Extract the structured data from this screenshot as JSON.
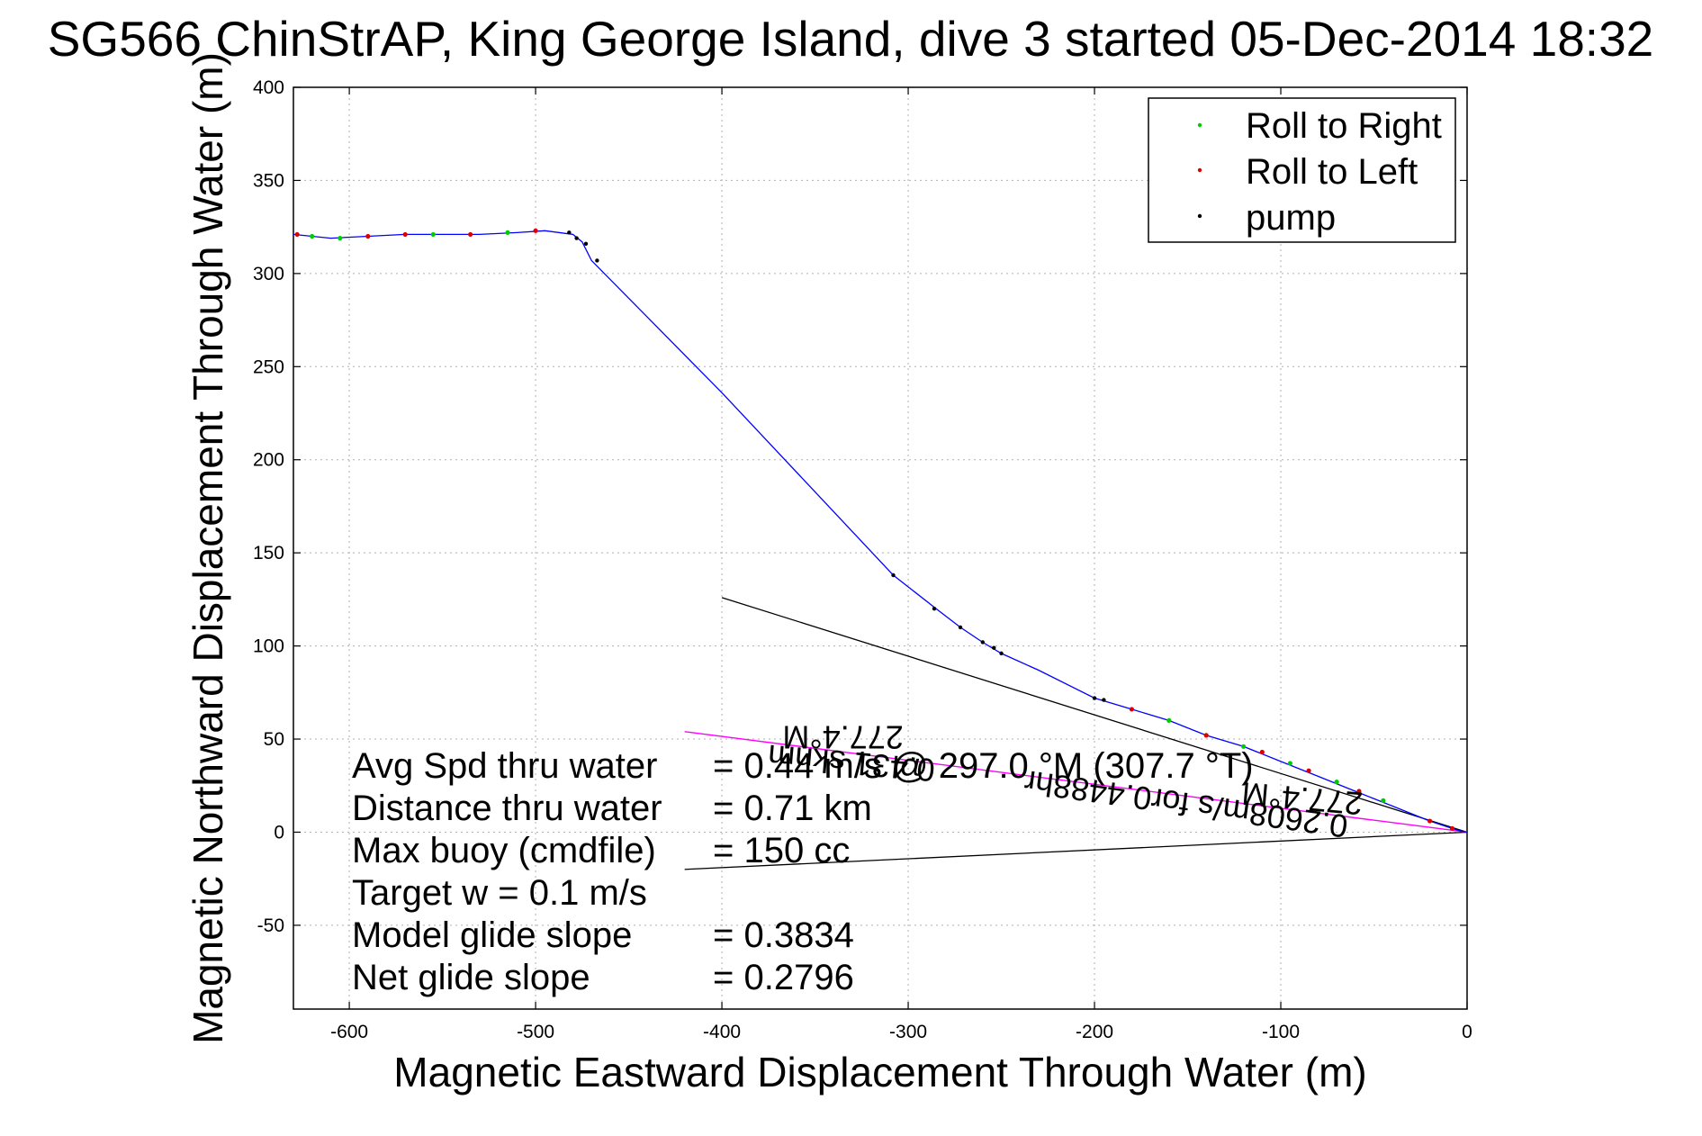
{
  "chart_data": {
    "type": "line",
    "title": "SG566 ChinStrAP, King George Island, dive 3 started 05-Dec-2014 18:32",
    "xlabel": "Magnetic Eastward Displacement Through Water (m)",
    "ylabel": "Magnetic Northward Displacement Through Water (m)",
    "xlim": [
      -630,
      0
    ],
    "ylim": [
      -95,
      400
    ],
    "xticks": [
      -600,
      -500,
      -400,
      -300,
      -200,
      -100,
      0
    ],
    "yticks": [
      -50,
      0,
      50,
      100,
      150,
      200,
      250,
      300,
      350,
      400
    ],
    "grid": true,
    "legend_placement": "top-right",
    "colors": {
      "track": "#0000ff",
      "roll_right": "#00cc00",
      "roll_left": "#dd0000",
      "pump": "#000000",
      "current_line": "#ff00ff",
      "reference_lines": "#000000",
      "grid": "#b0b0b0"
    },
    "legend": [
      {
        "label": "Roll to Right",
        "color": "#00cc00"
      },
      {
        "label": "Roll to Left",
        "color": "#dd0000"
      },
      {
        "label": "pump",
        "color": "#000000"
      }
    ],
    "series": [
      {
        "name": "",
        "color": "#0000ff",
        "points": [
          [
            -630,
            321
          ],
          [
            -610,
            319
          ],
          [
            -590,
            320
          ],
          [
            -570,
            321
          ],
          [
            -550,
            321
          ],
          [
            -530,
            321
          ],
          [
            -510,
            322
          ],
          [
            -495,
            323
          ],
          [
            -480,
            321
          ],
          [
            -475,
            317
          ],
          [
            -470,
            307
          ],
          [
            -400,
            236
          ],
          [
            -308,
            138
          ],
          [
            -285,
            120
          ],
          [
            -272,
            110
          ],
          [
            -260,
            102
          ],
          [
            -250,
            96
          ],
          [
            -230,
            87
          ],
          [
            -200,
            72
          ],
          [
            -180,
            66
          ],
          [
            -160,
            60
          ],
          [
            -140,
            52
          ],
          [
            -120,
            46
          ],
          [
            -100,
            38
          ],
          [
            -80,
            30
          ],
          [
            -60,
            22
          ],
          [
            -40,
            14
          ],
          [
            -20,
            6
          ],
          [
            -5,
            1
          ],
          [
            0,
            0
          ]
        ]
      }
    ],
    "roll_right_points": [
      [
        -620,
        320
      ],
      [
        -605,
        319
      ],
      [
        -555,
        321
      ],
      [
        -515,
        322
      ],
      [
        -160,
        60
      ],
      [
        -120,
        46
      ],
      [
        -95,
        37
      ],
      [
        -70,
        27
      ],
      [
        -45,
        17
      ]
    ],
    "roll_left_points": [
      [
        -628,
        321
      ],
      [
        -590,
        320
      ],
      [
        -570,
        321
      ],
      [
        -535,
        321
      ],
      [
        -500,
        323
      ],
      [
        -180,
        66
      ],
      [
        -140,
        52
      ],
      [
        -110,
        43
      ],
      [
        -85,
        33
      ],
      [
        -58,
        22
      ],
      [
        -20,
        6
      ],
      [
        -8,
        2
      ]
    ],
    "pump_points": [
      [
        -482,
        322
      ],
      [
        -478,
        319
      ],
      [
        -473,
        316
      ],
      [
        -467,
        307
      ],
      [
        -308,
        138
      ],
      [
        -286,
        120
      ],
      [
        -272,
        110
      ],
      [
        -260,
        102
      ],
      [
        -254,
        99
      ],
      [
        -250,
        96
      ],
      [
        -200,
        72
      ],
      [
        -195,
        71
      ]
    ],
    "reference_lines": [
      {
        "from": [
          -400,
          126
        ],
        "to": [
          0,
          0
        ]
      },
      {
        "from": [
          -420,
          -20
        ],
        "to": [
          0,
          0
        ]
      }
    ],
    "current_line": {
      "from": [
        -420,
        54
      ],
      "to": [
        0,
        0
      ]
    },
    "annotations": [
      "277.4°M",
      "0.431 sknm",
      "0.2608m/s for0.4488hr",
      "277.4°M"
    ],
    "info_panel": [
      {
        "label": "Avg Spd thru water",
        "value": "=  0.44 m/s @ 297.0 °M (307.7 °T)"
      },
      {
        "label": "Distance thru water",
        "value": "=  0.71 km"
      },
      {
        "label": "Max buoy (cmdfile)",
        "value": "= 150 cc"
      },
      {
        "label": "Target w    = 0.1 m/s",
        "value": ""
      },
      {
        "label": "Model glide slope",
        "value": "= 0.3834"
      },
      {
        "label": "Net glide slope",
        "value": "= 0.2796"
      }
    ]
  }
}
